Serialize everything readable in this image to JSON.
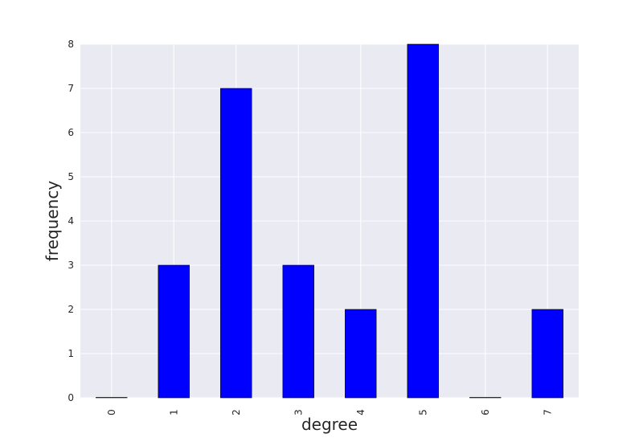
{
  "chart_data": {
    "type": "bar",
    "categories": [
      "0",
      "1",
      "2",
      "3",
      "4",
      "5",
      "6",
      "7"
    ],
    "values": [
      0,
      3,
      7,
      3,
      2,
      8,
      0,
      2
    ],
    "title": "",
    "xlabel": "degree",
    "ylabel": "frequency",
    "ylim": [
      0,
      8
    ],
    "yticks": [
      "0",
      "1",
      "2",
      "3",
      "4",
      "5",
      "6",
      "7",
      "8"
    ],
    "grid": true,
    "bar_color": "#0000ff",
    "plot_background": "#eaeaf2"
  }
}
